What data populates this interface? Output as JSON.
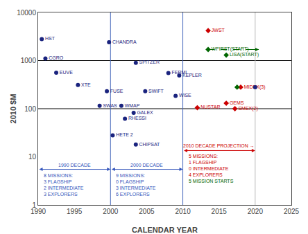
{
  "chart_data": {
    "type": "scatter",
    "xlabel": "CALENDAR YEAR",
    "ylabel": "2010 $M",
    "log": "y",
    "grid": false,
    "xlim": [
      1990,
      2025
    ],
    "xticks": [
      1990,
      1995,
      2000,
      2005,
      2010,
      2015,
      2020,
      2025
    ],
    "ylim": [
      1,
      10000
    ],
    "yticks": [
      1,
      10,
      100,
      1000,
      10000
    ],
    "series": [
      {
        "color": "#1a237e",
        "marker": "circle",
        "x": [
          1990.5,
          1991.0,
          1992.5,
          1995.5,
          1998.5,
          1999.5,
          1999.8,
          2001.5,
          2003.2,
          2002.0,
          2000.3,
          2003.5,
          2003.5,
          2004.8,
          2008.0,
          2009.0,
          2009.5
        ],
        "values": [
          2800,
          1100,
          560,
          310,
          115,
          230,
          2400,
          115,
          82,
          62,
          28,
          18,
          900,
          230,
          550,
          185,
          490
        ],
        "labels": [
          "HST",
          "CGRO",
          "EUVE",
          "XTE",
          "SWAS",
          "FUSE",
          "CHANDRA",
          "WMAP",
          "GALEX",
          "RHESSI",
          "HETE 2",
          "CHIPSAT",
          "SPITZER",
          "SWIFT",
          "FERMI",
          "WISE",
          "KEPLER"
        ]
      },
      {
        "color": "#cc0000",
        "marker": "diamond",
        "x": [
          2012.0,
          2013.5
        ],
        "values": [
          105,
          4200
        ],
        "labels": [
          "NUSTAR",
          "JWST"
        ]
      },
      {
        "color": "#cc0000",
        "marker": "diamond",
        "x": [
          2016.0,
          2017.2,
          2018.0
        ],
        "values": [
          130,
          100,
          280
        ],
        "labels": [
          "GEMS",
          "SMEX(2)",
          "MIDEX(3)"
        ]
      },
      {
        "color": "#006600",
        "marker": "diamond",
        "x": [
          2013.5,
          2016.0
        ],
        "values": [
          1700,
          1300
        ],
        "labels": [
          "WFIRST(START)",
          "LISA(START)"
        ]
      },
      {
        "color": "#1a237e",
        "marker": "circle",
        "x": [
          2020.0
        ],
        "values": [
          280
        ]
      },
      {
        "color": "#006600",
        "marker": "diamond",
        "x": [
          2017.5
        ],
        "values": [
          280
        ]
      }
    ],
    "hlines": [
      {
        "value": 100,
        "color": "#000000"
      },
      {
        "value": 1000,
        "color": "#000000"
      }
    ],
    "vlines": [
      {
        "value": 2000,
        "color": "#4466bb"
      },
      {
        "value": 2010,
        "color": "#4466bb"
      },
      {
        "value": 2020,
        "color": "#bbbbbb"
      }
    ],
    "dashed_arrow": {
      "x1": 2013.5,
      "x2": 2020.5,
      "y": 1700,
      "color": "#006600",
      "line_style": "dashed"
    },
    "spans": [
      {
        "x1": 1990,
        "x2": 2000,
        "y": 5.5,
        "color": "#3355bb",
        "label": "1990 DECADE",
        "notes": [
          {
            "color": "#3355bb",
            "lines": [
              "8 MISSIONS:",
              "3 FLAGSHIP",
              "2 INTERMEDIATE",
              "3 EXPLORERS"
            ]
          }
        ]
      },
      {
        "x1": 2000,
        "x2": 2010,
        "y": 5.5,
        "color": "#3355bb",
        "label": "2000 DECADE",
        "notes": [
          {
            "color": "#3355bb",
            "lines": [
              "9 MISSIONS:",
              "0 FLAGSHIP",
              "3 INTERMEDIATE",
              "6 EXPLORERS"
            ]
          }
        ]
      },
      {
        "x1": 2010.0,
        "x2": 2020.0,
        "y": 13.5,
        "color": "#cc0000",
        "label": "2010 DECADE PROJECTION →",
        "notes": [
          {
            "color": "#cc0000",
            "lines": [
              "5 MISSIONS:",
              "1 FLAGSHIP",
              "0 INTERMEDIATE",
              "4 EXPLORERS"
            ]
          },
          {
            "color": "#006600",
            "lines": [
              "5 MISSION STARTS"
            ]
          }
        ]
      }
    ]
  }
}
